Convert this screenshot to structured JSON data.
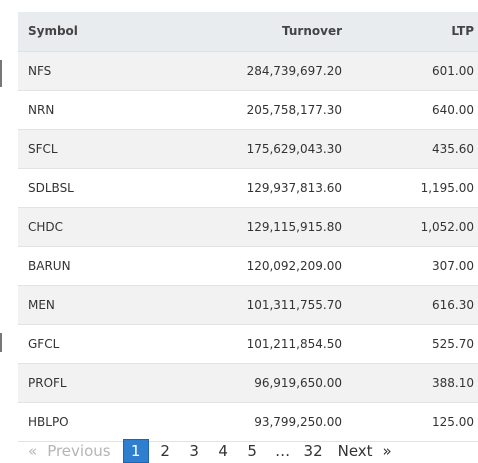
{
  "table": {
    "headers": {
      "symbol": "Symbol",
      "turnover": "Turnover",
      "ltp": "LTP"
    },
    "rows": [
      {
        "symbol": "NFS",
        "turnover": "284,739,697.20",
        "ltp": "601.00"
      },
      {
        "symbol": "NRN",
        "turnover": "205,758,177.30",
        "ltp": "640.00"
      },
      {
        "symbol": "SFCL",
        "turnover": "175,629,043.30",
        "ltp": "435.60"
      },
      {
        "symbol": "SDLBSL",
        "turnover": "129,937,813.60",
        "ltp": "1,195.00"
      },
      {
        "symbol": "CHDC",
        "turnover": "129,115,915.80",
        "ltp": "1,052.00"
      },
      {
        "symbol": "BARUN",
        "turnover": "120,092,209.00",
        "ltp": "307.00"
      },
      {
        "symbol": "MEN",
        "turnover": "101,311,755.70",
        "ltp": "616.30"
      },
      {
        "symbol": "GFCL",
        "turnover": "101,211,854.50",
        "ltp": "525.70"
      },
      {
        "symbol": "PROFL",
        "turnover": "96,919,650.00",
        "ltp": "388.10"
      },
      {
        "symbol": "HBLPO",
        "turnover": "93,799,250.00",
        "ltp": "125.00"
      }
    ]
  },
  "pagination": {
    "prev_arrow": "«",
    "previous_label": "Previous",
    "current": "1",
    "pages": [
      "2",
      "3",
      "4",
      "5"
    ],
    "ellipsis": "…",
    "last": "32",
    "next_label": "Next",
    "next_arrow": "»"
  },
  "colors": {
    "active_page": "#2f7fd1",
    "header_bg": "#e9ecef",
    "row_stripe": "#f2f2f2"
  }
}
